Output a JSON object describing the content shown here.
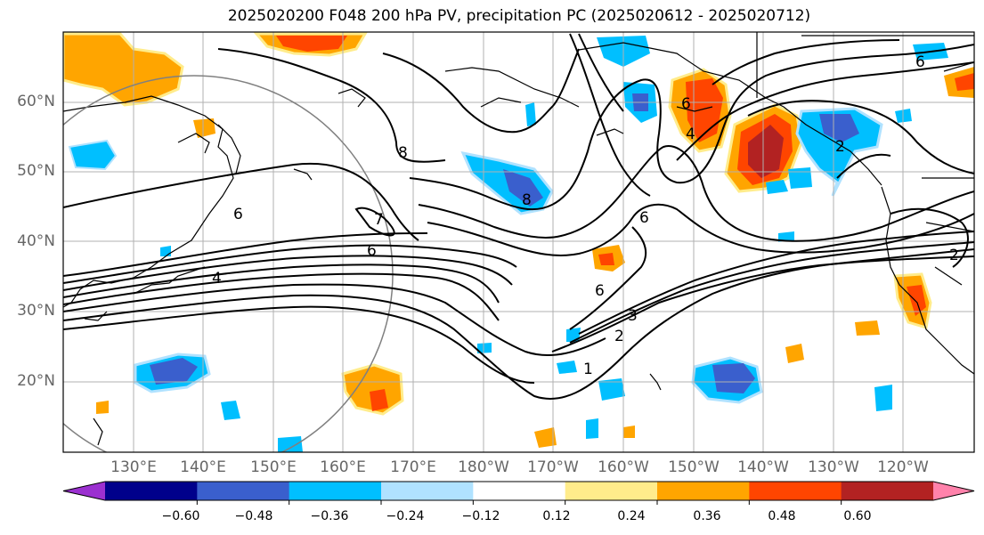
{
  "title": "2025020200 F048 200 hPa PV, precipitation PC (2025020612 - 2025020712)",
  "lat_labels": [
    "60°N",
    "50°N",
    "40°N",
    "30°N",
    "20°N"
  ],
  "lon_labels": [
    "130°E",
    "140°E",
    "150°E",
    "160°E",
    "170°E",
    "180°W",
    "170°W",
    "160°W",
    "150°W",
    "140°W",
    "130°W",
    "120°W"
  ],
  "colorbar": {
    "colors": [
      "#9b30d0",
      "#00008b",
      "#3a5fcd",
      "#00bfff",
      "#b0e2ff",
      "#ffffff",
      "#ffec8b",
      "#ffa500",
      "#ff4500",
      "#b22222",
      "#ff82ab"
    ],
    "labels": [
      "−0.60",
      "−0.48",
      "−0.36",
      "−0.24",
      "−0.12",
      "0.12",
      "0.24",
      "0.36",
      "0.48",
      "0.60"
    ]
  },
  "contour_labels": [
    "8",
    "7",
    "6",
    "4",
    "6",
    "2",
    "8",
    "6",
    "6",
    "4",
    "6",
    "3",
    "2",
    "1",
    "2",
    "6"
  ],
  "colors": {
    "grid": "#b0b0b0",
    "contour": "#000000",
    "circle": "#808080"
  }
}
